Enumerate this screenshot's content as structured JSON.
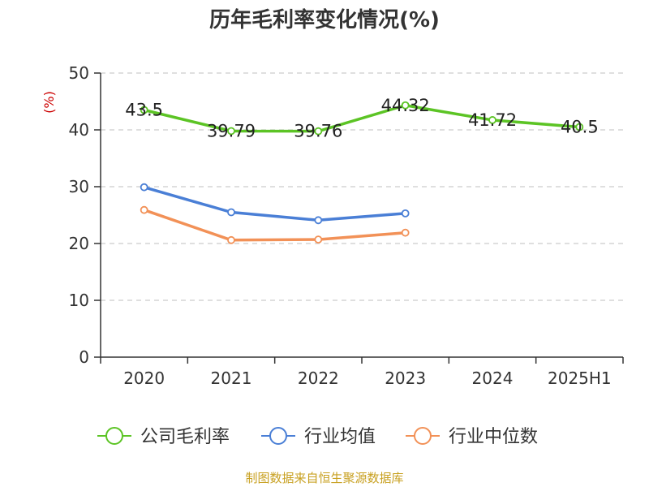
{
  "chart_data": {
    "type": "line",
    "title": "历年毛利率变化情况(%)",
    "ylabel": "(%)",
    "categories": [
      "2020",
      "2021",
      "2022",
      "2023",
      "2024",
      "2025H1"
    ],
    "ylim": [
      0,
      50
    ],
    "yticks": [
      0,
      10,
      20,
      30,
      40,
      50
    ],
    "grid": true,
    "legend_position": "bottom",
    "series": [
      {
        "name": "公司毛利率",
        "color": "#5cc425",
        "values": [
          43.5,
          39.79,
          39.76,
          44.32,
          41.72,
          40.5
        ],
        "labels": [
          "43.5",
          "39.79",
          "39.76",
          "44.32",
          "41.72",
          "40.5"
        ],
        "show_labels": true
      },
      {
        "name": "行业均值",
        "color": "#4a7fd6",
        "values": [
          29.9,
          25.5,
          24.1,
          25.3,
          null,
          null
        ],
        "show_labels": false
      },
      {
        "name": "行业中位数",
        "color": "#f29157",
        "values": [
          25.9,
          20.6,
          20.7,
          21.9,
          null,
          null
        ],
        "show_labels": false
      }
    ]
  },
  "footer": {
    "source": "制图数据来自恒生聚源数据库"
  },
  "colors": {
    "ylabel": "#cc0000",
    "footer": "#c8a020",
    "grid": "#cccccc",
    "axis": "#333333"
  }
}
